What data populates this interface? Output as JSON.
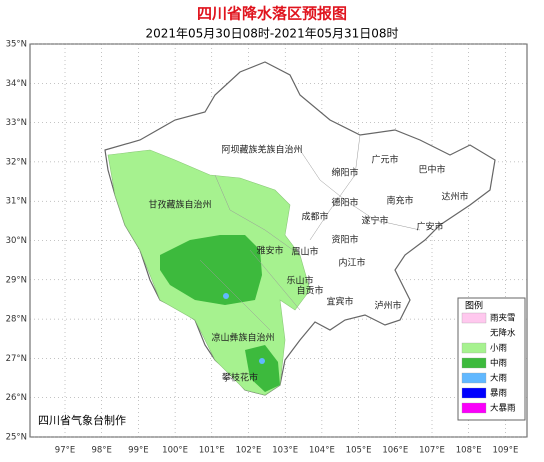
{
  "header": {
    "title": "四川省降水落区预报图",
    "subtitle": "2021年05月30日08时-2021年05月31日08时"
  },
  "axes": {
    "lat_labels": [
      "35°N",
      "34°N",
      "33°N",
      "32°N",
      "31°N",
      "30°N",
      "29°N",
      "28°N",
      "27°N",
      "26°N",
      "25°N"
    ],
    "lon_labels": [
      "97°E",
      "98°E",
      "99°E",
      "100°E",
      "101°E",
      "102°E",
      "103°E",
      "104°E",
      "105°E",
      "106°E",
      "107°E",
      "108°E",
      "109°E"
    ]
  },
  "places": [
    "阿坝藏族羌族自治州",
    "甘孜藏族自治州",
    "广元市",
    "巴中市",
    "绵阳市",
    "达州市",
    "南充市",
    "德阳市",
    "成都市",
    "遂宁市",
    "广安市",
    "资阳市",
    "雅安市",
    "眉山市",
    "内江市",
    "乐山市",
    "自贡市",
    "宜宾市",
    "泸州市",
    "凉山彝族自治州",
    "攀枝花市"
  ],
  "legend": {
    "title": "图例",
    "items": [
      {
        "label": "雨夹雪",
        "color": "#ffc8ee"
      },
      {
        "label": "无降水",
        "color": "#ffffff"
      },
      {
        "label": "小雨",
        "color": "#a6f28f"
      },
      {
        "label": "中雨",
        "color": "#3dba3d"
      },
      {
        "label": "大雨",
        "color": "#61b8ff"
      },
      {
        "label": "暴雨",
        "color": "#0000fe"
      },
      {
        "label": "大暴雨",
        "color": "#fa00fa"
      }
    ]
  },
  "credit": "四川省气象台制作"
}
